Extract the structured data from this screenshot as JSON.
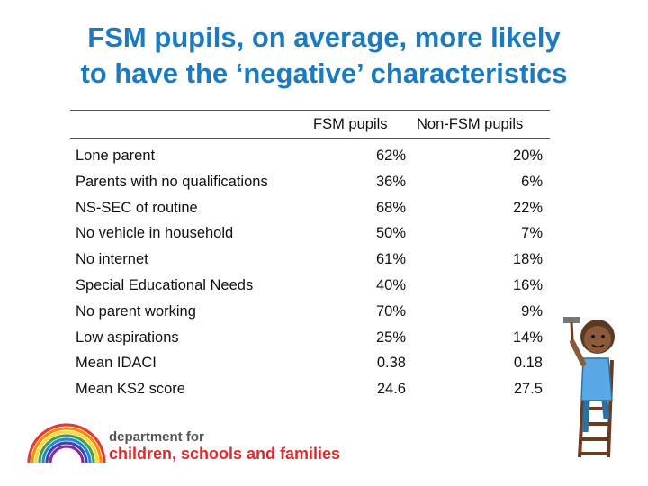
{
  "title_line1": "FSM pupils, on average, more likely",
  "title_line2": "to have the ‘negative’ characteristics",
  "table": {
    "headers": [
      "FSM pupils",
      "Non-FSM pupils"
    ],
    "rows": [
      {
        "label": "Lone parent",
        "fsm": "62%",
        "non_fsm": "20%"
      },
      {
        "label": "Parents with no qualifications",
        "fsm": "36%",
        "non_fsm": "6%"
      },
      {
        "label": "NS-SEC of routine",
        "fsm": "68%",
        "non_fsm": "22%"
      },
      {
        "label": "No vehicle in household",
        "fsm": "50%",
        "non_fsm": "7%"
      },
      {
        "label": "No internet",
        "fsm": "61%",
        "non_fsm": "18%"
      },
      {
        "label": "Special Educational Needs",
        "fsm": "40%",
        "non_fsm": "16%"
      },
      {
        "label": "No parent working",
        "fsm": "70%",
        "non_fsm": "9%"
      },
      {
        "label": "Low aspirations",
        "fsm": "25%",
        "non_fsm": "14%"
      },
      {
        "label": "Mean IDACI",
        "fsm": "0.38",
        "non_fsm": "0.18"
      },
      {
        "label": "Mean KS2 score",
        "fsm": "24.6",
        "non_fsm": "27.5"
      }
    ]
  },
  "logo": {
    "line1": "department for",
    "line2": "children, schools and families"
  },
  "colors": {
    "title": "#1b7bc2",
    "logo_red": "#e02a2a"
  }
}
